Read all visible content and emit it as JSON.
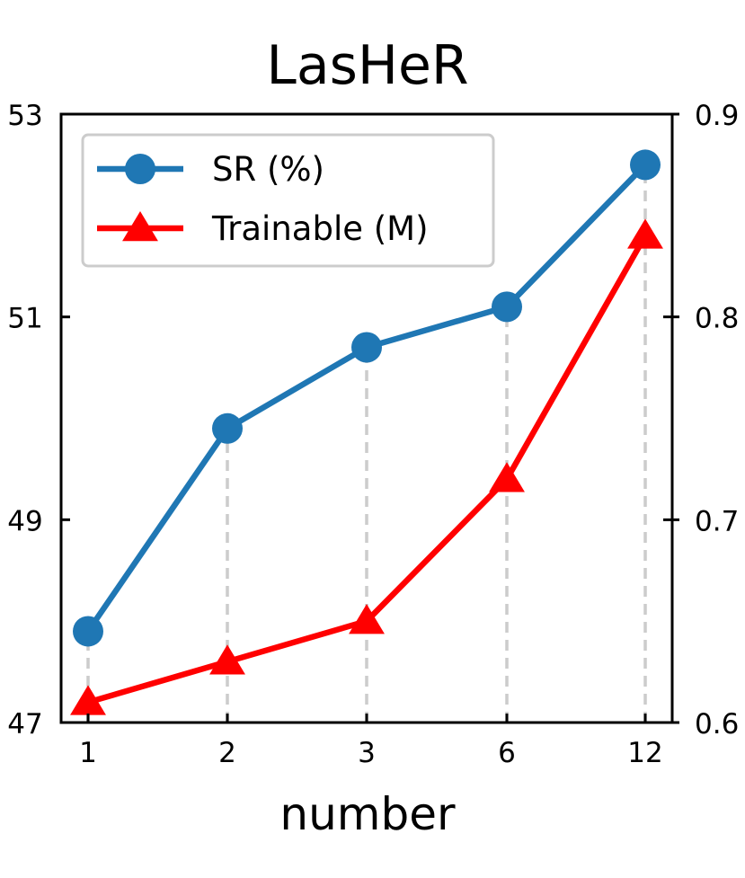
{
  "chart_data": {
    "type": "line",
    "title": "LasHeR",
    "xlabel": "number",
    "ylabel": "",
    "y2label": "",
    "categories": [
      "1",
      "2",
      "3",
      "6",
      "12"
    ],
    "ylim": [
      47,
      53
    ],
    "y2lim": [
      0.6,
      0.9
    ],
    "yticks": [
      "47",
      "49",
      "51",
      "53"
    ],
    "y2ticks": [
      "0.6",
      "0.7",
      "0.8",
      "0.9"
    ],
    "grid": "vertical dashed lines at each category",
    "legend": "top-left",
    "series": [
      {
        "name": "SR (%)",
        "axis": "left",
        "marker": "circle",
        "color": "#1f77b4",
        "values": [
          47.9,
          49.9,
          50.7,
          51.1,
          52.5
        ]
      },
      {
        "name": "Trainable (M)",
        "axis": "right",
        "marker": "triangle",
        "color": "#ff0000",
        "values": [
          0.61,
          0.63,
          0.65,
          0.72,
          0.84
        ]
      }
    ]
  }
}
